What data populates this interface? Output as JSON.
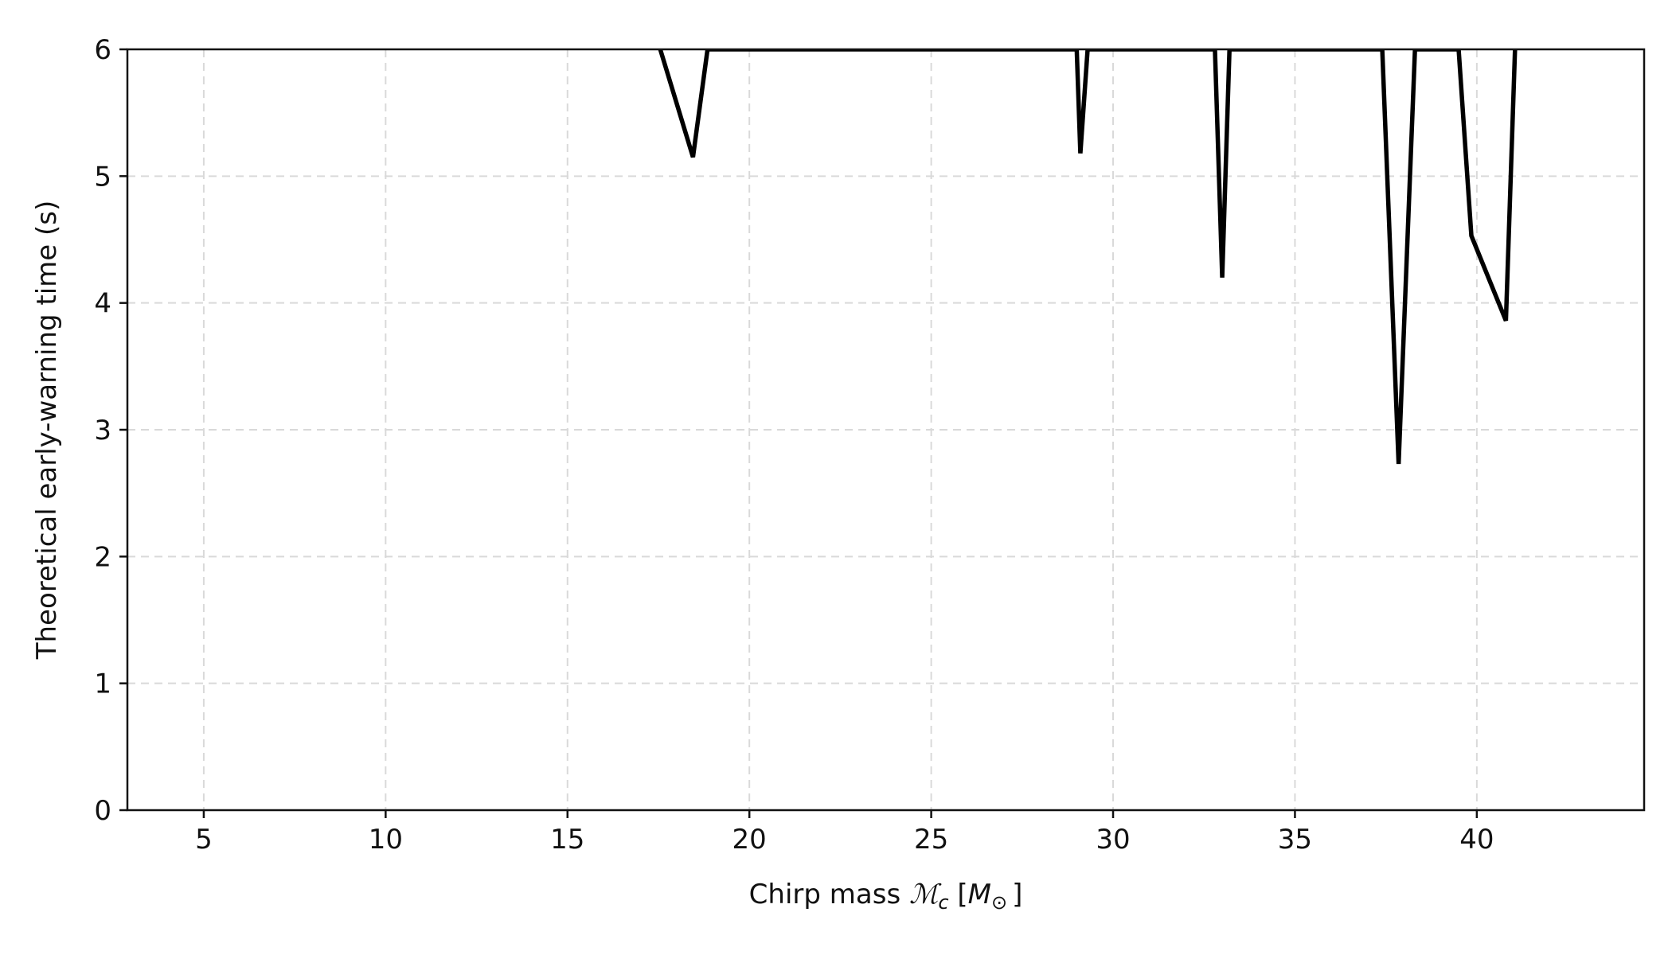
{
  "chart_data": {
    "type": "line",
    "title": "",
    "xlabel": "Chirp mass ℳc [M⊙]",
    "xlabel_parts": {
      "prefix": "Chirp mass ",
      "symbol": "ℳ",
      "symbol_sub": "c",
      "bracket_open": " [",
      "unit": "M",
      "unit_sub": "⊙",
      "bracket_close": "]"
    },
    "ylabel": "Theoretical early-warning time (s)",
    "xlim": [
      2.9,
      44.6
    ],
    "ylim": [
      0,
      6
    ],
    "xticks": [
      5,
      10,
      15,
      20,
      25,
      30,
      35,
      40
    ],
    "yticks": [
      0,
      1,
      2,
      3,
      4,
      5,
      6
    ],
    "grid": true,
    "line_color": "#000000",
    "series": [
      {
        "x": [
          17.55,
          18.45,
          18.85,
          29.0,
          29.1,
          29.3,
          32.8,
          33.0,
          33.2,
          37.4,
          37.85,
          38.3,
          39.5,
          39.85,
          40.8,
          41.05
        ],
        "y": [
          6,
          5.15,
          6,
          6,
          5.18,
          6,
          6,
          4.2,
          6,
          6,
          2.73,
          6,
          6,
          4.53,
          3.86,
          6
        ]
      }
    ]
  }
}
